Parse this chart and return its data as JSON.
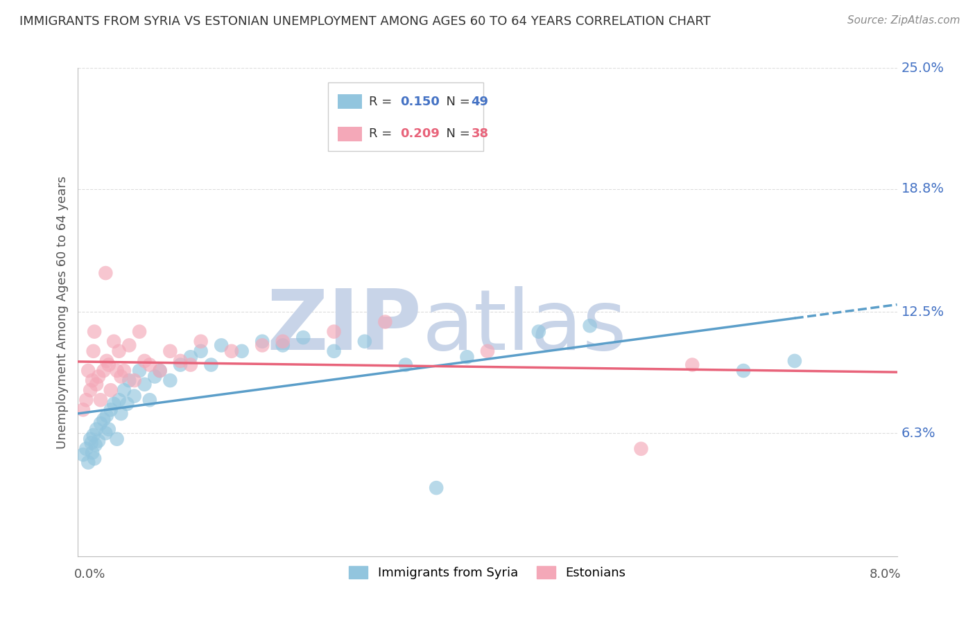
{
  "title": "IMMIGRANTS FROM SYRIA VS ESTONIAN UNEMPLOYMENT AMONG AGES 60 TO 64 YEARS CORRELATION CHART",
  "source": "Source: ZipAtlas.com",
  "ylabel": "Unemployment Among Ages 60 to 64 years",
  "xlabel_blue": "Immigrants from Syria",
  "xlabel_pink": "Estonians",
  "legend_blue_R": "0.150",
  "legend_blue_N": "49",
  "legend_pink_R": "0.209",
  "legend_pink_N": "38",
  "xlim": [
    0.0,
    8.0
  ],
  "ylim": [
    0.0,
    25.0
  ],
  "yticks": [
    6.3,
    12.5,
    18.8,
    25.0
  ],
  "right_ytick_labels": [
    "6.3%",
    "12.5%",
    "18.8%",
    "25.0%"
  ],
  "bottom_xtick_labels": [
    "0.0%",
    "8.0%"
  ],
  "color_blue": "#92C5DE",
  "color_pink": "#F4A8B8",
  "trendline_blue": "#5B9EC9",
  "trendline_pink": "#E8637A",
  "watermark_zip": "ZIP",
  "watermark_atlas": "atlas",
  "watermark_color_zip": "#C8D4E8",
  "watermark_color_atlas": "#C8D4E8",
  "background_color": "#FFFFFF",
  "grid_color": "#DDDDDD",
  "blue_scatter_x": [
    0.05,
    0.08,
    0.1,
    0.12,
    0.13,
    0.14,
    0.15,
    0.16,
    0.17,
    0.18,
    0.2,
    0.22,
    0.25,
    0.27,
    0.28,
    0.3,
    0.32,
    0.35,
    0.38,
    0.4,
    0.42,
    0.45,
    0.48,
    0.5,
    0.55,
    0.6,
    0.65,
    0.7,
    0.75,
    0.8,
    0.9,
    1.0,
    1.1,
    1.2,
    1.3,
    1.4,
    1.6,
    1.8,
    2.0,
    2.2,
    2.5,
    2.8,
    3.2,
    3.8,
    4.5,
    5.0,
    6.5,
    7.0,
    3.5
  ],
  "blue_scatter_y": [
    5.2,
    5.5,
    4.8,
    6.0,
    5.8,
    5.3,
    6.2,
    5.0,
    5.7,
    6.5,
    5.9,
    6.8,
    7.0,
    6.3,
    7.2,
    6.5,
    7.5,
    7.8,
    6.0,
    8.0,
    7.3,
    8.5,
    7.8,
    9.0,
    8.2,
    9.5,
    8.8,
    8.0,
    9.2,
    9.5,
    9.0,
    9.8,
    10.2,
    10.5,
    9.8,
    10.8,
    10.5,
    11.0,
    10.8,
    11.2,
    10.5,
    11.0,
    9.8,
    10.2,
    11.5,
    11.8,
    9.5,
    10.0,
    3.5
  ],
  "pink_scatter_x": [
    0.05,
    0.08,
    0.1,
    0.12,
    0.14,
    0.15,
    0.18,
    0.2,
    0.22,
    0.25,
    0.28,
    0.3,
    0.32,
    0.35,
    0.4,
    0.45,
    0.5,
    0.55,
    0.6,
    0.65,
    0.7,
    0.8,
    0.9,
    1.0,
    1.1,
    1.2,
    1.5,
    1.8,
    2.0,
    2.5,
    3.0,
    4.0,
    5.5,
    6.0,
    0.38,
    0.42,
    0.27,
    0.16
  ],
  "pink_scatter_y": [
    7.5,
    8.0,
    9.5,
    8.5,
    9.0,
    10.5,
    8.8,
    9.2,
    8.0,
    9.5,
    10.0,
    9.8,
    8.5,
    11.0,
    10.5,
    9.5,
    10.8,
    9.0,
    11.5,
    10.0,
    9.8,
    9.5,
    10.5,
    10.0,
    9.8,
    11.0,
    10.5,
    10.8,
    11.0,
    11.5,
    12.0,
    10.5,
    5.5,
    9.8,
    9.5,
    9.2,
    14.5,
    11.5
  ]
}
